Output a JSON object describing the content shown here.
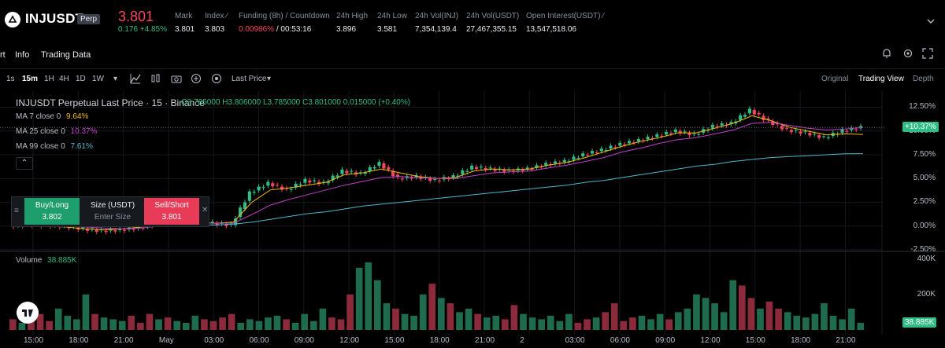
{
  "header": {
    "symbol": "INJUSDT",
    "contract_type": "Perp",
    "last_price": "3.801",
    "change": "0.176 +4.85%",
    "stats": [
      {
        "label": "Mark",
        "value": "3.801",
        "value_color": "normal",
        "has_icon": false
      },
      {
        "label": "Index",
        "value": "3.803",
        "value_color": "normal",
        "has_icon": true
      },
      {
        "label": "Funding (8h) / Countdown",
        "value": "0.00986%",
        "value2": " / 00:53:16",
        "value_color": "red",
        "has_icon": false
      },
      {
        "label": "24h High",
        "value": "3.896",
        "value_color": "normal",
        "has_icon": false
      },
      {
        "label": "24h Low",
        "value": "3.581",
        "value_color": "normal",
        "has_icon": false
      },
      {
        "label": "24h Vol(INJ)",
        "value": "7,354,139.4",
        "value_color": "normal",
        "has_icon": false
      },
      {
        "label": "24h Vol(USDT)",
        "value": "27,467,355.15",
        "value_color": "normal",
        "has_icon": false
      },
      {
        "label": "Open Interest(USDT)",
        "value": "13,547,518.06",
        "value_color": "normal",
        "has_icon": true
      }
    ]
  },
  "tabs": [
    "rt",
    "Info",
    "Trading Data"
  ],
  "toolbar": {
    "intervals": [
      "1s",
      "15m",
      "1H",
      "4H",
      "1D",
      "1W"
    ],
    "active_interval": "15m",
    "price_type": "Last Price",
    "views": [
      "Original",
      "Trading View",
      "Depth"
    ],
    "active_view": "Trading View"
  },
  "chart_legend": {
    "title": "INJUSDT Perpetual Last Price · 15 · Binance",
    "ohlc": "O3.785000  H3.806000  L3.785000  C3.801000  0.015000 (+0.40%)",
    "ma7_label": "MA 7 close 0",
    "ma7_value": "9.64%",
    "ma25_label": "MA 25 close 0",
    "ma25_value": "10.37%",
    "ma99_label": "MA 99 close 0",
    "ma99_value": "7.61%",
    "volume_label": "Volume",
    "volume_value": "38.885K"
  },
  "order_panel": {
    "buy_label": "Buy/Long",
    "buy_price": "3.802",
    "size_label": "Size (USDT)",
    "size_placeholder": "Enter Size",
    "sell_label": "Sell/Short",
    "sell_price": "3.801"
  },
  "price_axis": {
    "ticks": [
      "12.50%",
      "10.00%",
      "7.50%",
      "5.00%",
      "2.50%",
      "0.00%",
      "-2.50%"
    ],
    "tick_values": [
      12.5,
      10.0,
      7.5,
      5.0,
      2.5,
      0.0,
      -2.5
    ],
    "current_badge": "+10.37%"
  },
  "volume_axis": {
    "ticks": [
      "400K",
      "200K"
    ],
    "tick_values": [
      400000,
      200000
    ],
    "current_badge": "38.885K"
  },
  "time_axis": {
    "ticks": [
      "15:00",
      "18:00",
      "21:00",
      "May",
      "03:00",
      "06:00",
      "09:00",
      "12:00",
      "15:00",
      "18:00",
      "21:00",
      "2",
      "03:00",
      "06:00",
      "09:00",
      "12:00",
      "15:00",
      "18:00",
      "21:00"
    ]
  },
  "colors": {
    "up": "#2ebd85",
    "down": "#f6465d",
    "ma7": "#f0b90b",
    "ma25": "#c040c8",
    "ma99": "#4fb8c8",
    "background": "#000000"
  },
  "chart_data": {
    "type": "line",
    "title": "INJUSDT Perpetual Last Price · 15 · Binance",
    "ylabel": "",
    "ylim": [
      -2.5,
      13.2
    ],
    "series": [
      {
        "name": "Last Price change (%)",
        "values": [
          0.0,
          0.2,
          0.1,
          0.0,
          -0.3,
          -0.5,
          -0.4,
          -0.2,
          0.3,
          0.4,
          0.5,
          0.3,
          0.1,
          3.5,
          4.5,
          3.8,
          4.8,
          4.5,
          5.8,
          5.5,
          6.6,
          5.0,
          5.2,
          4.8,
          5.2,
          6.2,
          6.0,
          5.8,
          6.0,
          6.5,
          6.8,
          7.5,
          8.0,
          8.6,
          9.0,
          9.5,
          10.0,
          9.6,
          10.5,
          10.8,
          12.2,
          11.0,
          10.1,
          9.8,
          9.3,
          10.0,
          10.37
        ]
      },
      {
        "name": "MA 7",
        "values": [
          0.1,
          0.1,
          0.0,
          -0.1,
          -0.3,
          -0.4,
          -0.3,
          -0.1,
          0.2,
          0.3,
          0.4,
          0.3,
          0.4,
          2.5,
          3.8,
          4.0,
          4.3,
          4.6,
          5.4,
          5.6,
          6.0,
          5.6,
          5.2,
          5.0,
          5.1,
          5.8,
          6.0,
          5.9,
          6.0,
          6.4,
          6.7,
          7.2,
          7.8,
          8.4,
          8.9,
          9.3,
          9.8,
          9.8,
          10.3,
          10.8,
          11.6,
          11.1,
          10.4,
          10.0,
          9.6,
          9.7,
          9.64
        ]
      },
      {
        "name": "MA 25",
        "values": [
          0.2,
          0.1,
          0.1,
          0.0,
          -0.1,
          -0.2,
          -0.3,
          -0.2,
          0.0,
          0.1,
          0.3,
          0.3,
          0.3,
          1.2,
          2.2,
          2.8,
          3.3,
          3.8,
          4.3,
          4.7,
          5.1,
          5.2,
          5.1,
          5.0,
          5.0,
          5.3,
          5.6,
          5.7,
          5.8,
          6.1,
          6.4,
          6.8,
          7.2,
          7.8,
          8.2,
          8.7,
          9.1,
          9.3,
          9.7,
          10.1,
          10.8,
          10.9,
          10.6,
          10.3,
          10.1,
          10.2,
          10.37
        ]
      },
      {
        "name": "MA 99",
        "values": [
          0.1,
          0.1,
          0.1,
          0.1,
          0.0,
          0.0,
          0.0,
          0.0,
          0.0,
          0.1,
          0.1,
          0.1,
          0.2,
          0.4,
          0.7,
          1.0,
          1.3,
          1.5,
          1.8,
          2.1,
          2.3,
          2.5,
          2.7,
          2.9,
          3.1,
          3.3,
          3.5,
          3.7,
          3.9,
          4.1,
          4.3,
          4.6,
          4.8,
          5.1,
          5.4,
          5.7,
          6.0,
          6.3,
          6.5,
          6.8,
          7.0,
          7.2,
          7.3,
          7.4,
          7.5,
          7.6,
          7.61
        ]
      }
    ],
    "volume_series": {
      "name": "Volume",
      "values": [
        60,
        40,
        70,
        90,
        50,
        120,
        80,
        60,
        200,
        90,
        70,
        60,
        50,
        80,
        40,
        90,
        60,
        70,
        50,
        40,
        80,
        60,
        50,
        70,
        90,
        40,
        60,
        50,
        70,
        80,
        60,
        40,
        90,
        50,
        120,
        70,
        60,
        200,
        350,
        380,
        280,
        150,
        120,
        90,
        80,
        200,
        260,
        180,
        150,
        100,
        120,
        90,
        70,
        80,
        60,
        140,
        90,
        70,
        60,
        80,
        50,
        90,
        40,
        60,
        70,
        100,
        150,
        50,
        70,
        80,
        60,
        90,
        60,
        100,
        120,
        200,
        180,
        150,
        100,
        280,
        250,
        180,
        120,
        160,
        120,
        100,
        80,
        70,
        90,
        150,
        80,
        60,
        120,
        40
      ]
    }
  }
}
